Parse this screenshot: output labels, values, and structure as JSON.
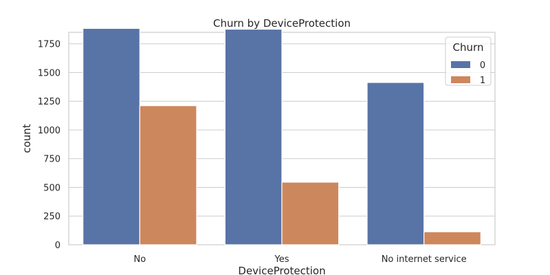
{
  "chart_data": {
    "type": "bar",
    "title": "Churn by DeviceProtection",
    "xlabel": "DeviceProtection",
    "ylabel": "count",
    "categories": [
      "No",
      "Yes",
      "No internet service"
    ],
    "series": [
      {
        "name": "0",
        "values": [
          1884,
          1877,
          1413
        ],
        "color": "#5874a7"
      },
      {
        "name": "1",
        "values": [
          1211,
          545,
          113
        ],
        "color": "#cd875d"
      }
    ],
    "ylim": [
      0,
      1850
    ],
    "yticks": [
      0,
      250,
      500,
      750,
      1000,
      1250,
      1500,
      1750
    ],
    "grid": true,
    "legend": {
      "title": "Churn",
      "position": "top-right"
    }
  }
}
